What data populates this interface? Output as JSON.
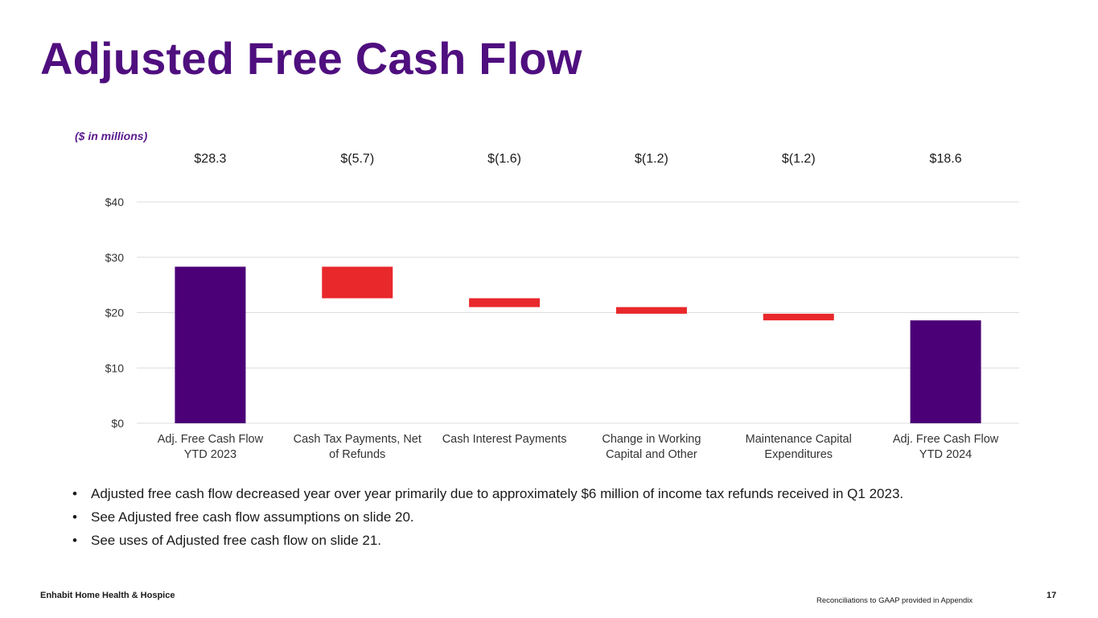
{
  "slide": {
    "title": "Adjusted Free Cash Flow",
    "units_note": "($ in millions)",
    "bullets": [
      "Adjusted free cash flow decreased year over year primarily due to approximately $6 million of income tax refunds received in Q1 2023.",
      "See Adjusted free cash flow assumptions on slide 20.",
      "See uses of Adjusted free cash flow on slide 21."
    ],
    "footer_left": "Enhabit Home Health & Hospice",
    "footer_note": "Reconciliations to GAAP provided in Appendix",
    "page_number": "17"
  },
  "colors": {
    "title": "#4f0f7f",
    "total_bar": "#4b0077",
    "decrease_bar": "#e8282b"
  },
  "chart_data": {
    "type": "bar",
    "subtype": "waterfall",
    "categories": [
      [
        "Adj. Free Cash Flow",
        "YTD 2023"
      ],
      [
        "Cash Tax Payments, Net",
        "of Refunds"
      ],
      [
        "Cash Interest Payments"
      ],
      [
        "Change in Working",
        "Capital and Other"
      ],
      [
        "Maintenance Capital",
        "Expenditures"
      ],
      [
        "Adj. Free Cash Flow",
        "YTD 2024"
      ]
    ],
    "values": [
      28.3,
      -5.7,
      -1.6,
      -1.2,
      -1.2,
      18.6
    ],
    "bar_kinds": [
      "total",
      "decrease",
      "decrease",
      "decrease",
      "decrease",
      "total"
    ],
    "value_labels": [
      "$28.3",
      "$(5.7)",
      "$(1.6)",
      "$(1.2)",
      "$(1.2)",
      "$18.6"
    ],
    "yticks": [
      "$0",
      "$10",
      "$20",
      "$30",
      "$40"
    ],
    "ylim": [
      0,
      40
    ],
    "grid": true,
    "legend": "none"
  }
}
